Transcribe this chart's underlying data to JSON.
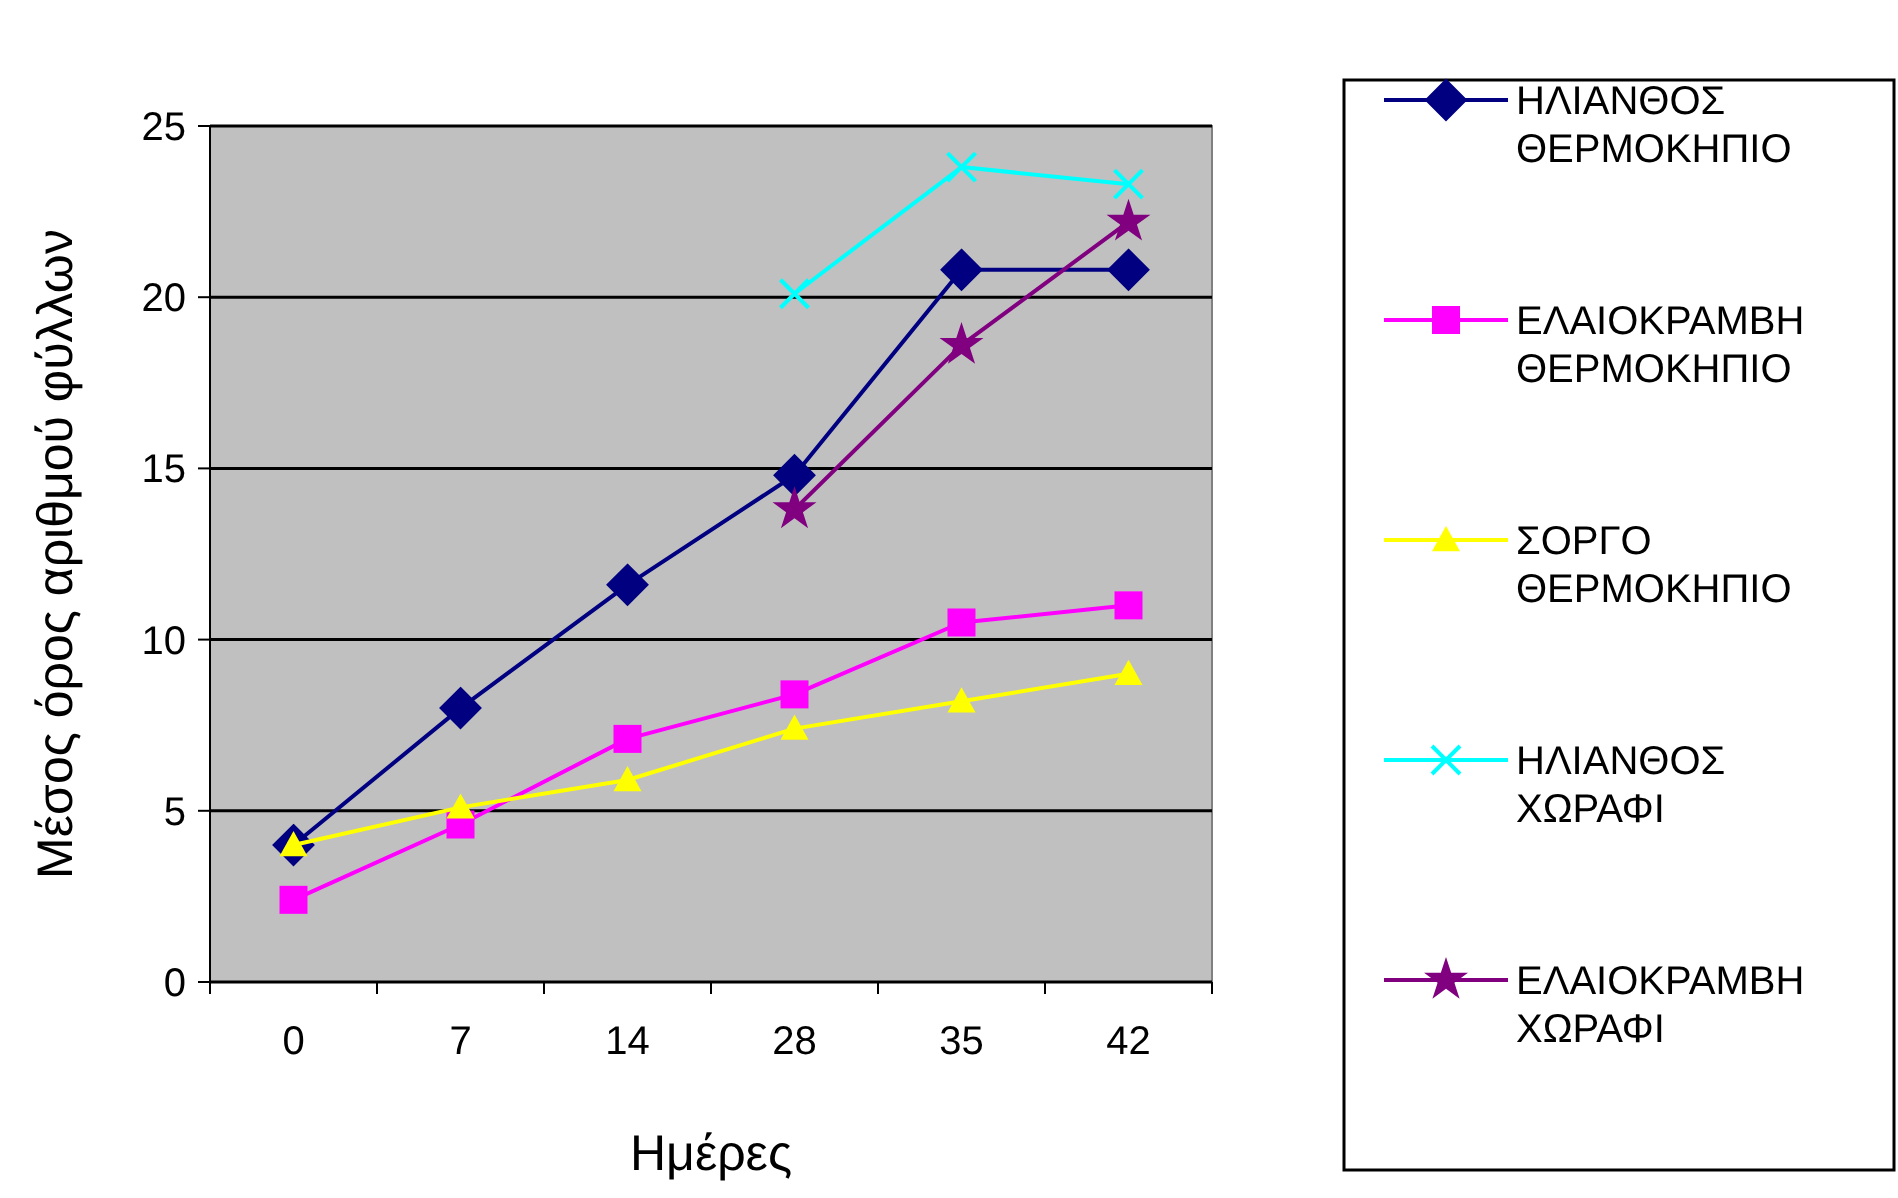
{
  "chart_data": {
    "type": "line",
    "xlabel": "Ημέρες",
    "ylabel": "Μέσος όρος αριθμού φύλλων",
    "categories": [
      "0",
      "7",
      "14",
      "28",
      "35",
      "42"
    ],
    "ylim": [
      0,
      25
    ],
    "yticks": [
      0,
      5,
      10,
      15,
      20,
      25
    ],
    "grid": "y",
    "legend": "right",
    "series": [
      {
        "name": "ΗΛΙΑΝΘΟΣ ΘΕΡΜΟΚΗΠΙΟ",
        "color": "#000080",
        "marker": "diamond",
        "values": [
          4.0,
          8.0,
          11.6,
          14.8,
          20.8,
          20.8
        ]
      },
      {
        "name": "ΕΛΑΙΟΚΡΑΜΒΗ ΘΕΡΜΟΚΗΠΙΟ",
        "color": "#ff00ff",
        "marker": "square",
        "values": [
          2.4,
          4.6,
          7.1,
          8.4,
          10.5,
          11.0
        ]
      },
      {
        "name": "ΣΟΡΓΟ ΘΕΡΜΟΚΗΠΙΟ",
        "color": "#ffff00",
        "marker": "triangle",
        "values": [
          4.0,
          5.1,
          5.9,
          7.4,
          8.2,
          9.0
        ]
      },
      {
        "name": "ΗΛΙΑΝΘΟΣ ΧΩΡΑΦΙ",
        "color": "#00ffff",
        "marker": "cross",
        "values": [
          null,
          null,
          null,
          20.1,
          23.8,
          23.3
        ]
      },
      {
        "name": "ΕΛΑΙΟΚΡΑΜΒΗ ΧΩΡΑΦΙ",
        "color": "#800080",
        "marker": "star",
        "values": [
          null,
          null,
          null,
          13.8,
          18.6,
          22.2
        ]
      }
    ]
  }
}
